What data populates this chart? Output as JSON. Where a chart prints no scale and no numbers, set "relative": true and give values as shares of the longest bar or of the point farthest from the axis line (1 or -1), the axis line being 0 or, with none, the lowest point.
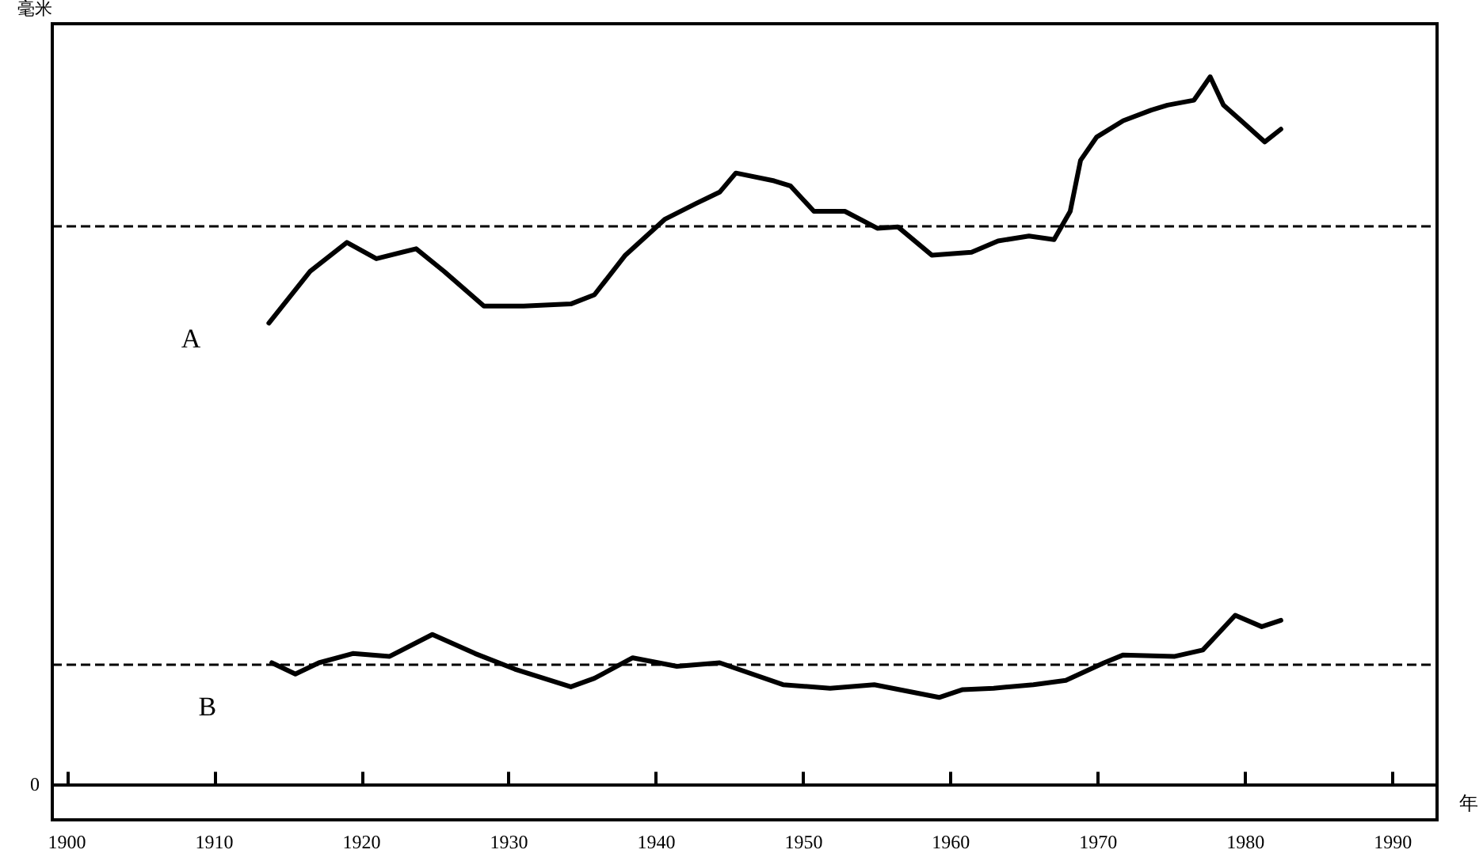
{
  "chart_data": {
    "type": "line",
    "relative": true,
    "ylabel": "毫米",
    "xlabel": "年",
    "xlim": [
      1899,
      1993
    ],
    "xticks": [
      1900,
      1910,
      1920,
      1930,
      1940,
      1950,
      1960,
      1970,
      1980,
      1990
    ],
    "annotations": [
      "0"
    ],
    "grid": false,
    "legend": false,
    "marker": "none",
    "line_style": "solid",
    "series": [
      {
        "name": "A",
        "color": "#000000",
        "x": [
          1913.7,
          1916.5,
          1919,
          1921,
          1923.7,
          1925.6,
          1928.3,
          1931,
          1934.2,
          1935.8,
          1937.9,
          1940.6,
          1942.7,
          1944.3,
          1945.4,
          1948,
          1949.1,
          1950.7,
          1952.8,
          1955,
          1956.4,
          1958.7,
          1961.4,
          1963.2,
          1965.3,
          1967,
          1968.1,
          1968.8,
          1969.9,
          1971.7,
          1973.6,
          1974.7,
          1976.5,
          1977.6,
          1978.5,
          1979.7,
          1981.3,
          1982.4
        ],
        "values": [
          0.652,
          0.725,
          0.766,
          0.743,
          0.757,
          0.725,
          0.676,
          0.676,
          0.679,
          0.692,
          0.748,
          0.799,
          0.821,
          0.837,
          0.864,
          0.853,
          0.846,
          0.81,
          0.81,
          0.786,
          0.788,
          0.748,
          0.752,
          0.768,
          0.775,
          0.77,
          0.81,
          0.882,
          0.915,
          0.938,
          0.953,
          0.96,
          0.967,
          1,
          0.96,
          0.938,
          0.908,
          0.926
        ]
      },
      {
        "name": "B",
        "color": "#000000",
        "x": [
          1913.9,
          1915.5,
          1917.1,
          1919.4,
          1921.9,
          1924.8,
          1927.7,
          1930.4,
          1934.2,
          1935.8,
          1938.4,
          1941.4,
          1944.3,
          1948.6,
          1951.8,
          1954.8,
          1959.2,
          1960.8,
          1962.9,
          1965.6,
          1967.8,
          1970.4,
          1971.7,
          1975.2,
          1977.1,
          1979.3,
          1981.1,
          1982.4
        ],
        "values": [
          0.172,
          0.156,
          0.172,
          0.185,
          0.181,
          0.212,
          0.185,
          0.163,
          0.138,
          0.15,
          0.179,
          0.167,
          0.172,
          0.141,
          0.136,
          0.141,
          0.123,
          0.134,
          0.136,
          0.141,
          0.147,
          0.172,
          0.183,
          0.181,
          0.19,
          0.239,
          0.223,
          0.232
        ]
      }
    ],
    "ref_lines": [
      {
        "axis": "y",
        "value": 0.792,
        "color": "#000000",
        "line_style": "dashed"
      },
      {
        "axis": "y",
        "value": 0.167,
        "color": "#000000",
        "line_style": "dashed"
      }
    ]
  }
}
